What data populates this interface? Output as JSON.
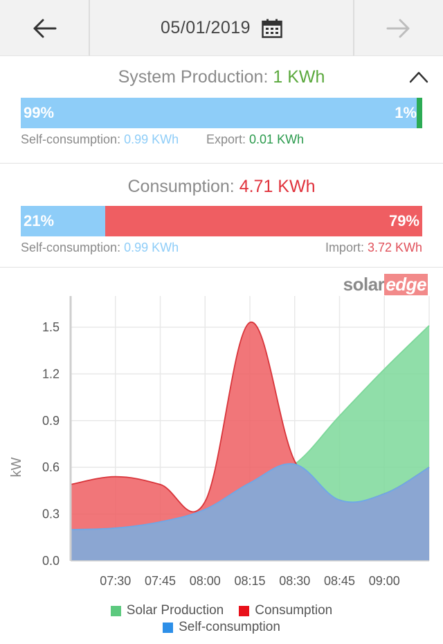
{
  "header": {
    "date": "05/01/2019",
    "back_icon": "arrow-left-icon",
    "forward_icon": "arrow-right-icon",
    "calendar_icon": "calendar-icon"
  },
  "production": {
    "label": "System Production: ",
    "value": "1 KWh",
    "self_pct": "99%",
    "export_pct": "1%",
    "self_fraction": 0.99,
    "export_fraction": 0.01,
    "self_label": "Self-consumption: ",
    "self_value": "0.99 KWh",
    "export_label": "Export: ",
    "export_value": "0.01 KWh"
  },
  "consumption": {
    "label": "Consumption: ",
    "value": "4.71 KWh",
    "self_pct": "21%",
    "import_pct": "79%",
    "self_fraction": 0.21,
    "import_fraction": 0.79,
    "self_label": "Self-consumption: ",
    "self_value": "0.99 KWh",
    "import_label": "Import: ",
    "import_value": "3.72 KWh"
  },
  "logo": {
    "part1": "solar",
    "part2": "edge"
  },
  "colors": {
    "solar": "#7dd89a",
    "consumption": "#ef5e62",
    "self": "#8ba6d2",
    "green_bar": "#2cab55",
    "blue_bar": "#8ecdf8"
  },
  "chart_data": {
    "type": "area",
    "ylabel": "kW",
    "ylim": [
      0,
      1.7
    ],
    "yticks": [
      "0.0",
      "0.3",
      "0.6",
      "0.9",
      "1.2",
      "1.5"
    ],
    "ytick_values": [
      0,
      0.3,
      0.6,
      0.9,
      1.2,
      1.5
    ],
    "xticks": [
      "07:30",
      "07:45",
      "08:00",
      "08:15",
      "08:30",
      "08:45",
      "09:00"
    ],
    "xtick_minutes": [
      450,
      465,
      480,
      495,
      510,
      525,
      540
    ],
    "x_minutes": [
      435,
      450,
      465,
      480,
      495,
      510,
      525,
      540,
      555
    ],
    "grid": true,
    "legend": [
      "Solar Production",
      "Consumption",
      "Self-consumption"
    ],
    "legend_colors": [
      "#5cc97e",
      "#e8101a",
      "#2d8fe8"
    ],
    "series": [
      {
        "name": "Solar Production",
        "values": [
          0.2,
          0.21,
          0.25,
          0.33,
          0.5,
          0.62,
          0.93,
          1.23,
          1.51
        ]
      },
      {
        "name": "Consumption",
        "values": [
          0.49,
          0.54,
          0.49,
          0.38,
          1.53,
          0.64,
          0.39,
          0.43,
          0.6
        ]
      },
      {
        "name": "Self-consumption",
        "values": [
          0.2,
          0.21,
          0.25,
          0.33,
          0.5,
          0.62,
          0.39,
          0.43,
          0.6
        ]
      }
    ]
  }
}
